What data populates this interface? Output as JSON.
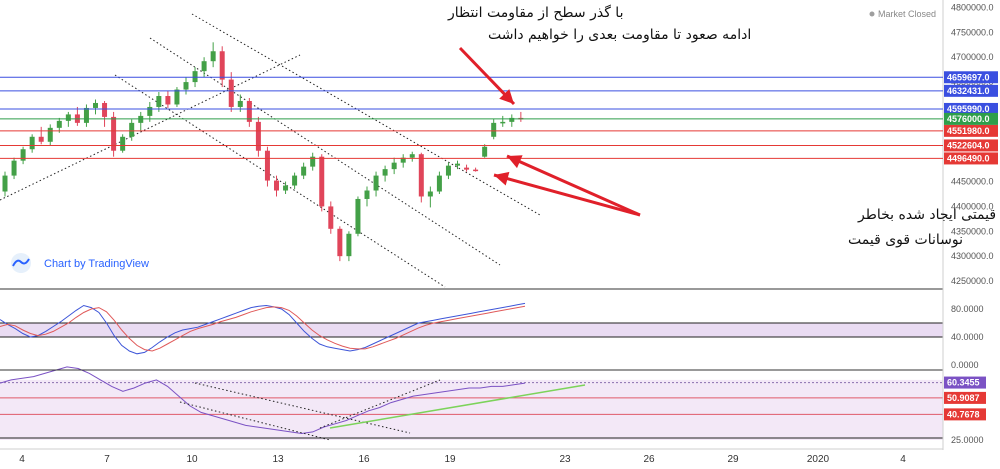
{
  "header": {
    "market_status": "Market Closed"
  },
  "watermark": {
    "label": "Chart by TradingView"
  },
  "annotations": {
    "resistance_note": [
      "با گذر سطح از مقاومت انتظار",
      "ادامه صعود تا مقاومت بعدی را خواهیم داشت"
    ],
    "gap_note": [
      "گپ های قیمتی ایجاد شده بخاطر",
      "نوسانات قوی قیمت"
    ]
  },
  "colors": {
    "bull": "#43a047",
    "bear": "#e0455a",
    "resistance": "#3a4fe0",
    "support": "#e53935",
    "arrow": "#e0202a",
    "blue_line": "#5a6ee8",
    "red_line": "#e05a6a",
    "green_trend": "#7cd35a",
    "band": "#eadcf3"
  },
  "chart_data": [
    {
      "type": "candlestick",
      "title": "",
      "y_ticks": [
        4250000,
        4300000,
        4350000,
        4400000,
        4450000,
        4500000,
        4550000,
        4600000,
        4650000,
        4700000,
        4750000,
        4800000
      ],
      "y_tick_labels": [
        "4250000.0",
        "4300000.0",
        "4350000.0",
        "4400000.0",
        "4450000.0",
        "4500000.0",
        "4550000.0",
        "4600000.0",
        "4650000.0",
        "4700000.0",
        "4750000.0",
        "4800000.0"
      ],
      "ylim": [
        4240000,
        4805000
      ],
      "x_tick_labels": [
        "4",
        "7",
        "10",
        "13",
        "16",
        "19",
        "23",
        "26",
        "29",
        "2020",
        "4"
      ],
      "resistance_levels": [
        4659697,
        4632431,
        4595990
      ],
      "resistance_labels": [
        "4659697.0",
        "4632431.0",
        "4595990.0"
      ],
      "support_levels": [
        4551980,
        4522604,
        4496490
      ],
      "support_labels": [
        "4551980.0",
        "4522604.0",
        "4496490.0"
      ],
      "last_price": 4576000,
      "last_price_label": "4576000.0",
      "ohlc": [
        [
          4430000,
          4470000,
          4420000,
          4462000
        ],
        [
          4462000,
          4498000,
          4455000,
          4492000
        ],
        [
          4492000,
          4520000,
          4485000,
          4515000
        ],
        [
          4515000,
          4545000,
          4508000,
          4540000
        ],
        [
          4540000,
          4560000,
          4525000,
          4530000
        ],
        [
          4530000,
          4565000,
          4522000,
          4558000
        ],
        [
          4558000,
          4578000,
          4548000,
          4572000
        ],
        [
          4572000,
          4590000,
          4560000,
          4585000
        ],
        [
          4585000,
          4600000,
          4562000,
          4568000
        ],
        [
          4568000,
          4605000,
          4560000,
          4598000
        ],
        [
          4598000,
          4615000,
          4585000,
          4608000
        ],
        [
          4608000,
          4612000,
          4560000,
          4580000
        ],
        [
          4580000,
          4590000,
          4500000,
          4512000
        ],
        [
          4512000,
          4545000,
          4508000,
          4540000
        ],
        [
          4540000,
          4575000,
          4532000,
          4568000
        ],
        [
          4568000,
          4590000,
          4552000,
          4582000
        ],
        [
          4582000,
          4610000,
          4570000,
          4600000
        ],
        [
          4600000,
          4630000,
          4590000,
          4622000
        ],
        [
          4622000,
          4632000,
          4598000,
          4605000
        ],
        [
          4605000,
          4640000,
          4600000,
          4635000
        ],
        [
          4635000,
          4660000,
          4625000,
          4650000
        ],
        [
          4650000,
          4680000,
          4640000,
          4672000
        ],
        [
          4672000,
          4700000,
          4660000,
          4692000
        ],
        [
          4692000,
          4730000,
          4680000,
          4712000
        ],
        [
          4712000,
          4722000,
          4640000,
          4655000
        ],
        [
          4655000,
          4670000,
          4590000,
          4600000
        ],
        [
          4600000,
          4625000,
          4590000,
          4612000
        ],
        [
          4612000,
          4618000,
          4560000,
          4570000
        ],
        [
          4570000,
          4580000,
          4500000,
          4512000
        ],
        [
          4512000,
          4520000,
          4440000,
          4452000
        ],
        [
          4452000,
          4462000,
          4420000,
          4432000
        ],
        [
          4432000,
          4450000,
          4425000,
          4442000
        ],
        [
          4442000,
          4468000,
          4435000,
          4462000
        ],
        [
          4462000,
          4488000,
          4455000,
          4480000
        ],
        [
          4480000,
          4508000,
          4472000,
          4500000
        ],
        [
          4500000,
          4505000,
          4390000,
          4400000
        ],
        [
          4400000,
          4410000,
          4345000,
          4355000
        ],
        [
          4355000,
          4360000,
          4290000,
          4300000
        ],
        [
          4300000,
          4350000,
          4290000,
          4345000
        ],
        [
          4345000,
          4420000,
          4340000,
          4415000
        ],
        [
          4415000,
          4440000,
          4400000,
          4432000
        ],
        [
          4432000,
          4470000,
          4420000,
          4462000
        ],
        [
          4462000,
          4482000,
          4450000,
          4475000
        ],
        [
          4475000,
          4498000,
          4465000,
          4488000
        ],
        [
          4488000,
          4505000,
          4478000,
          4498000
        ],
        [
          4498000,
          4510000,
          4490000,
          4505000
        ],
        [
          4505000,
          4508000,
          4408000,
          4420000
        ],
        [
          4420000,
          4440000,
          4398000,
          4430000
        ],
        [
          4430000,
          4470000,
          4425000,
          4462000
        ],
        [
          4462000,
          4488000,
          4455000,
          4482000
        ],
        [
          4482000,
          4492000,
          4475000,
          4486000
        ],
        [
          4478000,
          4484000,
          4470000,
          4474000
        ],
        [
          4474000,
          4478000,
          4470000,
          4472000
        ],
        [
          4500000,
          4525000,
          4498000,
          4520000
        ],
        [
          4540000,
          4576000,
          4535000,
          4568000
        ],
        [
          4568000,
          4582000,
          4560000,
          4570000
        ],
        [
          4570000,
          4585000,
          4560000,
          4578000
        ],
        [
          4578000,
          4590000,
          4570000,
          4576000
        ]
      ]
    },
    {
      "type": "line",
      "title": "",
      "y_tick_labels": [
        "80.0000",
        "40.0000",
        "0.0000"
      ],
      "band": [
        40,
        60
      ],
      "series": [
        {
          "color": "#3d55d8",
          "values": [
            65,
            58,
            52,
            45,
            40,
            42,
            48,
            55,
            62,
            70,
            78,
            85,
            82,
            75,
            60,
            42,
            28,
            20,
            16,
            18,
            25,
            33,
            40,
            46,
            50,
            52,
            54,
            58,
            62,
            66,
            70,
            74,
            78,
            82,
            84,
            85,
            83,
            80,
            72,
            60,
            48,
            38,
            30,
            26,
            24,
            22,
            20,
            22,
            25,
            30,
            35,
            40,
            45,
            50,
            55,
            60,
            62,
            64,
            66,
            68,
            70,
            72,
            74,
            76,
            78,
            80,
            82,
            84,
            86,
            88
          ]
        },
        {
          "color": "#e05a5a",
          "values": [
            55,
            58,
            56,
            50,
            45,
            42,
            44,
            48,
            54,
            60,
            68,
            75,
            80,
            82,
            76,
            64,
            50,
            38,
            28,
            22,
            20,
            24,
            30,
            36,
            42,
            48,
            52,
            55,
            58,
            62,
            65,
            68,
            72,
            76,
            79,
            82,
            83,
            82,
            78,
            70,
            60,
            50,
            42,
            36,
            31,
            27,
            24,
            23,
            23,
            26,
            30,
            34,
            38,
            43,
            48,
            53,
            57,
            60,
            62,
            64,
            66,
            68,
            70,
            72,
            74,
            76,
            78,
            80,
            82,
            84
          ]
        }
      ]
    },
    {
      "type": "line",
      "title": "",
      "y_tick_labels": [
        "60.3455",
        "50.9087",
        "40.7678",
        "25.0000"
      ],
      "reference_levels": [
        60.3455,
        50.9087,
        40.7678
      ],
      "series": [
        {
          "color": "#7b52c4",
          "values": [
            60,
            62,
            63,
            64,
            66,
            68,
            70,
            69,
            66,
            62,
            58,
            55,
            57,
            60,
            62,
            58,
            52,
            46,
            42,
            40,
            38,
            36,
            34,
            33,
            32,
            31,
            30,
            29,
            30,
            33,
            35,
            37,
            40,
            43,
            45,
            48,
            50,
            52,
            53,
            54,
            55,
            56,
            57,
            57,
            58,
            58,
            59,
            60
          ]
        }
      ]
    }
  ]
}
